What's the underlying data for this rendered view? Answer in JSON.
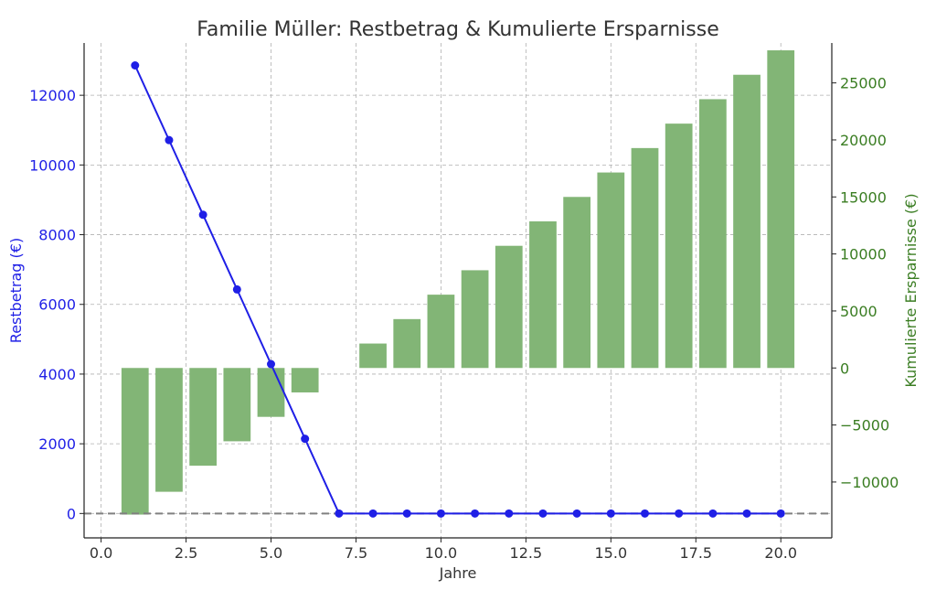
{
  "chart_data": {
    "type": "bar+line",
    "title": "Familie Müller: Restbetrag & Kumulierte Ersparnisse",
    "xlabel": "Jahre",
    "ylabel_left": "Restbetrag (€)",
    "ylabel_right": "Kumulierte Ersparnisse (€)",
    "xlim": [
      -0.5,
      21.5
    ],
    "ylim_left": [
      -700,
      13500
    ],
    "ylim_right": [
      -14900,
      28500
    ],
    "x_ticks": [
      0.0,
      2.5,
      5.0,
      7.5,
      10.0,
      12.5,
      15.0,
      17.5,
      20.0
    ],
    "x_tick_labels": [
      "0.0",
      "2.5",
      "5.0",
      "7.5",
      "10.0",
      "12.5",
      "15.0",
      "17.5",
      "20.0"
    ],
    "y_left_ticks": [
      0,
      2000,
      4000,
      6000,
      8000,
      10000,
      12000
    ],
    "y_left_tick_labels": [
      "0",
      "2000",
      "4000",
      "6000",
      "8000",
      "10000",
      "12000"
    ],
    "y_right_ticks": [
      -10000,
      -5000,
      0,
      5000,
      10000,
      15000,
      20000,
      25000
    ],
    "y_right_tick_labels": [
      "−10000",
      "−5000",
      "0",
      "5000",
      "10000",
      "15000",
      "20000",
      "25000"
    ],
    "grid": true,
    "colors": {
      "line": "#1f1fe6",
      "bars": "#82b576",
      "left_axis": "#1f1fe6",
      "right_axis": "#3a7d22",
      "baseline": "#808080"
    },
    "x": [
      1,
      2,
      3,
      4,
      5,
      6,
      7,
      8,
      9,
      10,
      11,
      12,
      13,
      14,
      15,
      16,
      17,
      18,
      19,
      20
    ],
    "series": [
      {
        "type": "line",
        "axis": "left",
        "values": [
          12857,
          10714,
          8571,
          6429,
          4286,
          2143,
          0,
          0,
          0,
          0,
          0,
          0,
          0,
          0,
          0,
          0,
          0,
          0,
          0,
          0
        ]
      },
      {
        "type": "bar",
        "axis": "right",
        "values": [
          -12857,
          -10857,
          -8571,
          -6429,
          -4286,
          -2143,
          0,
          2143,
          4286,
          6429,
          8571,
          10714,
          12857,
          15000,
          17143,
          19286,
          21429,
          23571,
          25714,
          27857
        ]
      }
    ],
    "reference_lines": [
      {
        "axis": "left",
        "y": 0,
        "style": "dashed"
      }
    ]
  }
}
